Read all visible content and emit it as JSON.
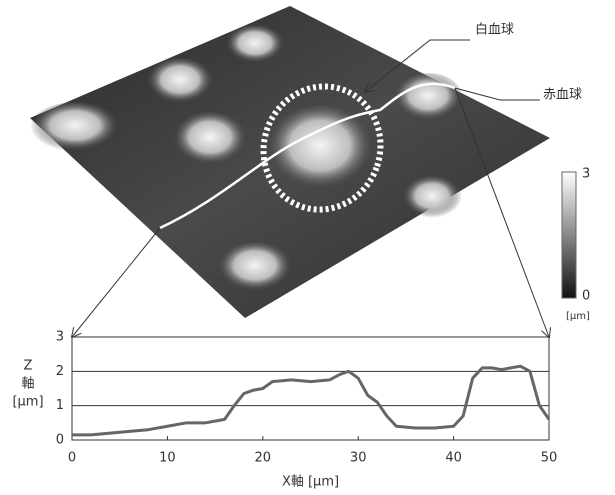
{
  "surface": {
    "annotations": [
      "白血球",
      "赤血球"
    ],
    "colorbar": {
      "ticks": [
        3,
        0
      ],
      "label": "[μm]"
    }
  },
  "chart_data": {
    "type": "line",
    "x": [
      0,
      2,
      4,
      6,
      8,
      10,
      12,
      14,
      16,
      17,
      18,
      19,
      20,
      21,
      23,
      25,
      27,
      28,
      29,
      30,
      31,
      32,
      33,
      34,
      36,
      38,
      40,
      41,
      42,
      43,
      44,
      45,
      46,
      47,
      48,
      49,
      50
    ],
    "values": [
      0.15,
      0.15,
      0.2,
      0.25,
      0.3,
      0.4,
      0.5,
      0.5,
      0.6,
      1.0,
      1.35,
      1.45,
      1.5,
      1.7,
      1.75,
      1.7,
      1.75,
      1.9,
      2.0,
      1.8,
      1.3,
      1.1,
      0.7,
      0.4,
      0.35,
      0.35,
      0.4,
      0.7,
      1.8,
      2.1,
      2.1,
      2.05,
      2.1,
      2.15,
      2.0,
      1.0,
      0.6
    ],
    "color": "#666666",
    "xlim": [
      0,
      50
    ],
    "ylim": [
      0,
      3
    ],
    "xticks": [
      0,
      10,
      20,
      30,
      40,
      50
    ],
    "yticks": [
      0,
      1,
      2,
      3
    ],
    "grid": true,
    "x_label": "X軸 [μm]",
    "y_label": [
      "Z",
      "軸",
      "[μm]"
    ]
  }
}
